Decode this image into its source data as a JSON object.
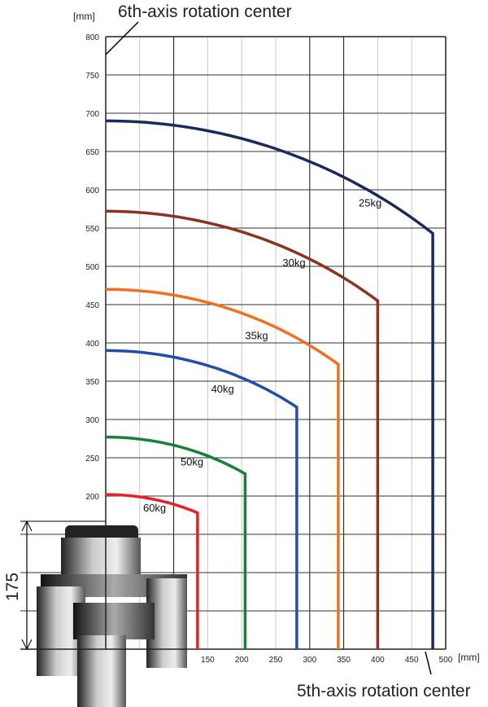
{
  "chart_data": {
    "type": "line",
    "title": "",
    "xlabel": "[mm]",
    "ylabel": "[mm]",
    "xlim": [
      0,
      500
    ],
    "ylim": [
      0,
      800
    ],
    "x_ticks": [
      150,
      200,
      250,
      300,
      350,
      400,
      450,
      500
    ],
    "y_ticks": [
      200,
      250,
      300,
      350,
      400,
      450,
      500,
      550,
      600,
      650,
      700,
      750,
      800
    ],
    "grid": true,
    "annotations": {
      "sixth_axis": "6th-axis rotation center",
      "fifth_axis": "5th-axis rotation center",
      "offset_dimension": "175"
    },
    "series": [
      {
        "name": "25kg",
        "color": "#1b2a5e",
        "y_at_zero": 690,
        "corner_x": 481,
        "corner_y": 543
      },
      {
        "name": "30kg",
        "color": "#8b3222",
        "y_at_zero": 572,
        "corner_x": 400,
        "corner_y": 455
      },
      {
        "name": "35kg",
        "color": "#f07020",
        "y_at_zero": 470,
        "corner_x": 342,
        "corner_y": 372
      },
      {
        "name": "40kg",
        "color": "#1f4fa8",
        "y_at_zero": 390,
        "corner_x": 281,
        "corner_y": 316
      },
      {
        "name": "50kg",
        "color": "#1a8038",
        "y_at_zero": 277,
        "corner_x": 205,
        "corner_y": 229
      },
      {
        "name": "60kg",
        "color": "#e8202a",
        "y_at_zero": 202,
        "corner_x": 135,
        "corner_y": 178
      }
    ]
  }
}
